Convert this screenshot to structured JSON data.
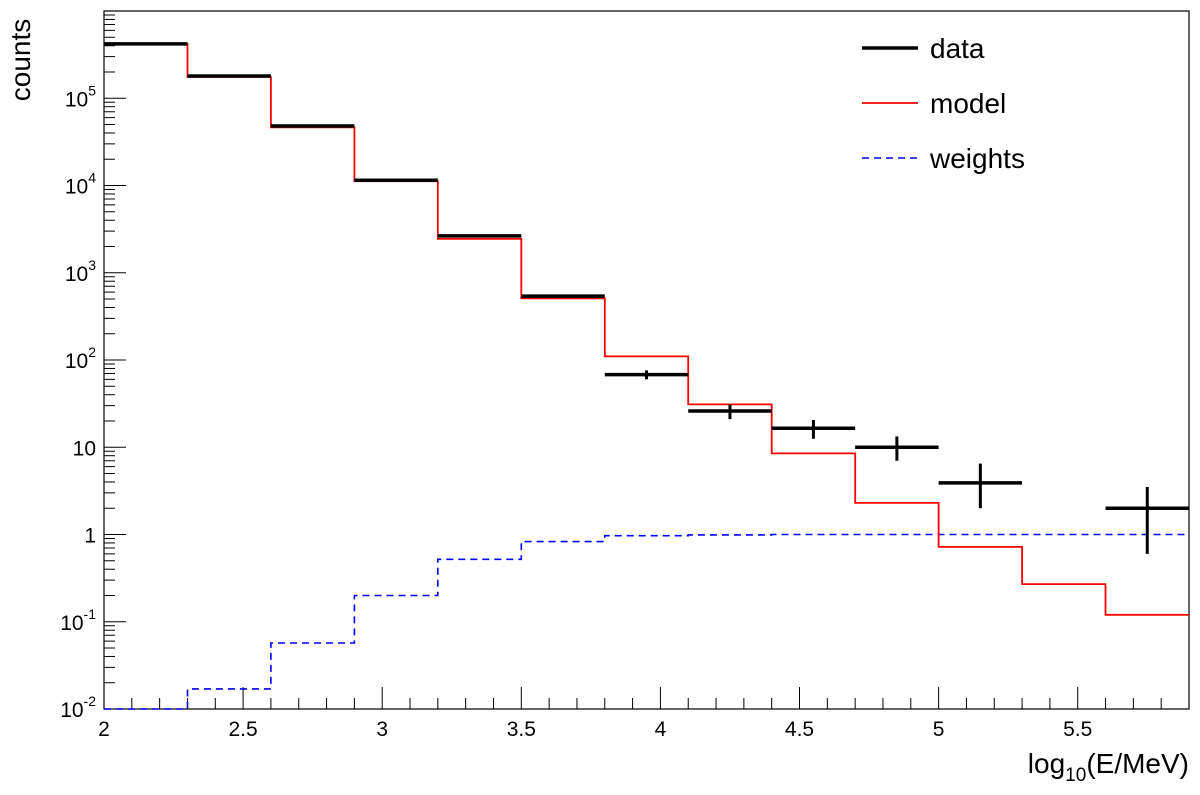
{
  "chart_data": {
    "type": "step",
    "title": "",
    "xlabel_base": "log",
    "xlabel_sub": "10",
    "xlabel_rest": "(E/MeV)",
    "ylabel": "counts",
    "xlim": [
      2,
      5.9
    ],
    "ylim": [
      0.01,
      1000000
    ],
    "yscale": "log",
    "x_ticks": [
      {
        "value": 2,
        "label": "2"
      },
      {
        "value": 2.5,
        "label": "2.5"
      },
      {
        "value": 3,
        "label": "3"
      },
      {
        "value": 3.5,
        "label": "3.5"
      },
      {
        "value": 4,
        "label": "4"
      },
      {
        "value": 4.5,
        "label": "4.5"
      },
      {
        "value": 5,
        "label": "5"
      },
      {
        "value": 5.5,
        "label": "5.5"
      }
    ],
    "y_ticks": [
      {
        "value": 0.01,
        "base": "10",
        "exp": "-2"
      },
      {
        "value": 0.1,
        "base": "10",
        "exp": "-1"
      },
      {
        "value": 1,
        "base": "1",
        "exp": ""
      },
      {
        "value": 10,
        "base": "10",
        "exp": ""
      },
      {
        "value": 100,
        "base": "10",
        "exp": "2"
      },
      {
        "value": 1000,
        "base": "10",
        "exp": "3"
      },
      {
        "value": 10000,
        "base": "10",
        "exp": "4"
      },
      {
        "value": 100000,
        "base": "10",
        "exp": "5"
      }
    ],
    "bin_edges": [
      2.0,
      2.3,
      2.6,
      2.9,
      3.2,
      3.5,
      3.8,
      4.1,
      4.4,
      4.7,
      5.0,
      5.3,
      5.6,
      5.9
    ],
    "legend": [
      {
        "key": "data",
        "label": "data",
        "color": "#000000",
        "style": "solid-thick"
      },
      {
        "key": "model",
        "label": "model",
        "color": "#ff0000",
        "style": "solid"
      },
      {
        "key": "weights",
        "label": "weights",
        "color": "#0000ff",
        "style": "dashed"
      }
    ],
    "series": [
      {
        "name": "data",
        "kind": "points-with-errors",
        "color": "#000000",
        "values": [
          420000,
          180000,
          48000,
          11500,
          2650,
          540,
          68,
          26,
          16.5,
          10,
          3.9,
          null,
          2.0
        ],
        "err_low": [
          0,
          0,
          0,
          0,
          0,
          0,
          8,
          5,
          4,
          3,
          1.9,
          null,
          1.4
        ],
        "err_high": [
          0,
          0,
          0,
          0,
          0,
          0,
          8,
          5,
          4,
          3.3,
          2.6,
          null,
          1.5
        ]
      },
      {
        "name": "model",
        "kind": "step",
        "color": "#ff0000",
        "values": [
          420000,
          175000,
          46500,
          11200,
          2450,
          510,
          110,
          31,
          8.5,
          2.3,
          0.72,
          0.27,
          0.12
        ]
      },
      {
        "name": "weights",
        "kind": "step",
        "color": "#0000ff",
        "values": [
          0.0095,
          0.017,
          0.057,
          0.2,
          0.52,
          0.83,
          0.97,
          0.99,
          1.0,
          1.0,
          1.0,
          1.0,
          1.0
        ]
      }
    ]
  }
}
